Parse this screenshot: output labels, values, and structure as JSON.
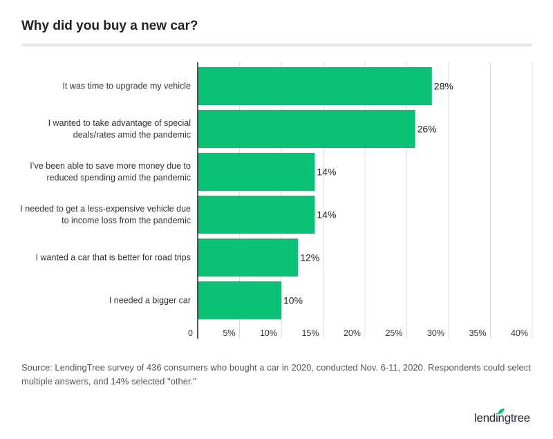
{
  "title": "Why did you buy a new car?",
  "source": "Source: LendingTree survey of 436 consumers who bought a car in 2020, conducted Nov. 6-11, 2020. Respondents could select multiple answers, and 14% selected \"other.\"",
  "logo_text": "lendingtree",
  "colors": {
    "bar": "#0bc175",
    "grid": "#dddddd",
    "axis": "#222222",
    "leaf": "#0bc175"
  },
  "chart_data": {
    "type": "bar",
    "orientation": "horizontal",
    "title": "Why did you buy a new car?",
    "categories": [
      [
        "It was time to upgrade my vehicle"
      ],
      [
        "I wanted to take advantage of special",
        "deals/rates amid the pandemic"
      ],
      [
        "I’ve been able to save more money due to",
        "reduced spending amid the pandemic"
      ],
      [
        "I needed to get a less-expensive vehicle due",
        "to income loss from the pandemic"
      ],
      [
        "I wanted a car that is better for road trips"
      ],
      [
        "I needed a bigger car"
      ]
    ],
    "values": [
      28,
      26,
      14,
      14,
      12,
      10
    ],
    "value_labels": [
      "28%",
      "26%",
      "14%",
      "14%",
      "12%",
      "10%"
    ],
    "xlim": [
      0,
      40
    ],
    "xticks": [
      0,
      5,
      10,
      15,
      20,
      25,
      30,
      35,
      40
    ],
    "xtick_labels": [
      "0",
      "5%",
      "10%",
      "15%",
      "20%",
      "25%",
      "30%",
      "35%",
      "40%"
    ],
    "grid": true
  }
}
